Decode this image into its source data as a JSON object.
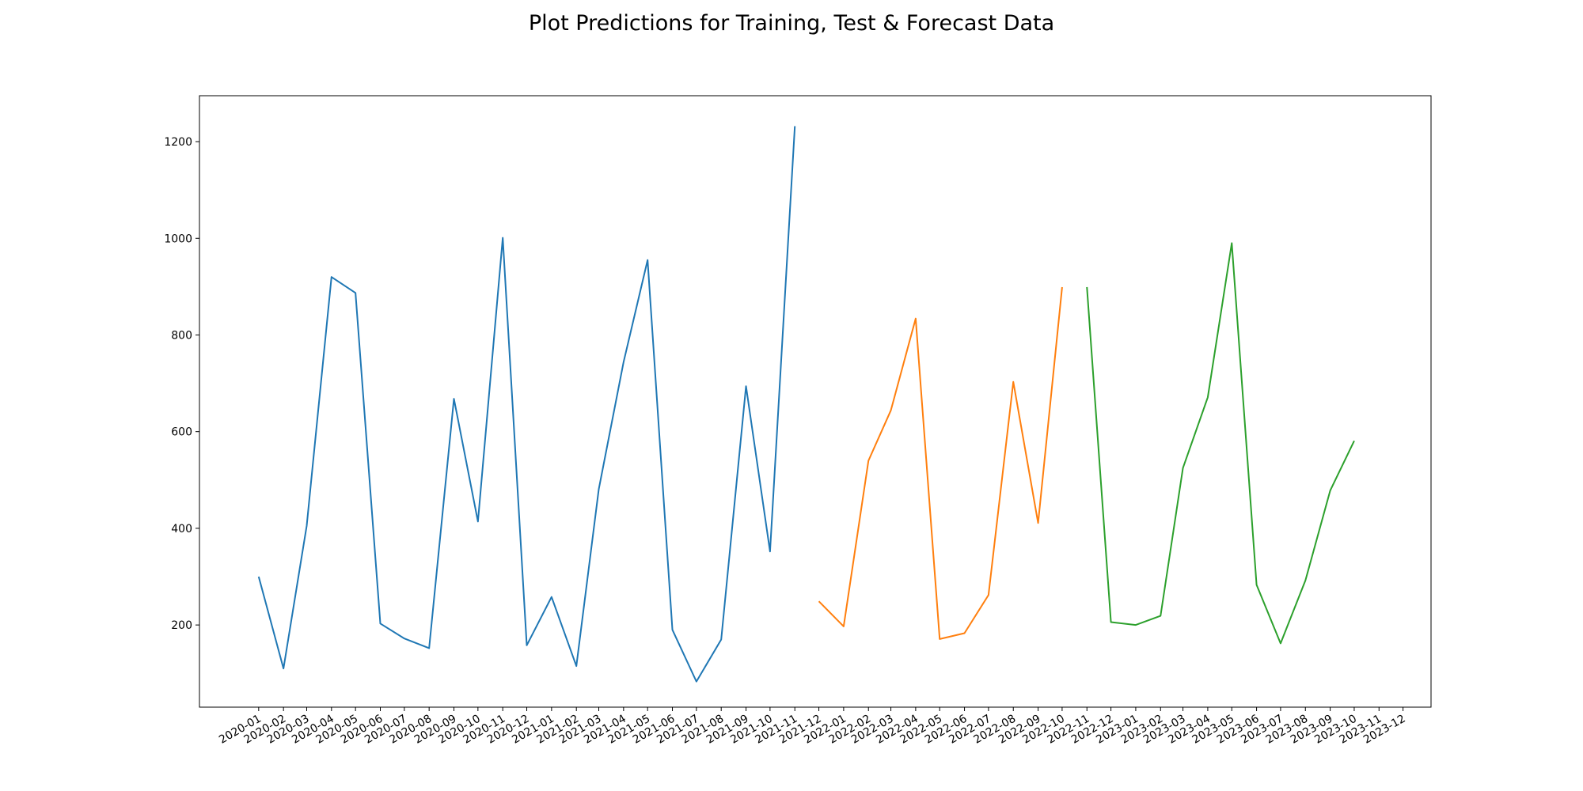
{
  "chart_data": {
    "type": "line",
    "title": "Plot Predictions for Training, Test & Forecast Data",
    "xlabel": "",
    "ylabel": "",
    "x_ticks": [
      "2020-01",
      "2020-02",
      "2020-03",
      "2020-04",
      "2020-05",
      "2020-06",
      "2020-07",
      "2020-08",
      "2020-09",
      "2020-10",
      "2020-11",
      "2020-12",
      "2021-01",
      "2021-02",
      "2021-03",
      "2021-04",
      "2021-05",
      "2021-06",
      "2021-07",
      "2021-08",
      "2021-09",
      "2021-10",
      "2021-11",
      "2021-12",
      "2022-01",
      "2022-02",
      "2022-03",
      "2022-04",
      "2022-05",
      "2022-06",
      "2022-07",
      "2022-08",
      "2022-09",
      "2022-10",
      "2022-11",
      "2022-12",
      "2023-01",
      "2023-02",
      "2023-03",
      "2023-04",
      "2023-05",
      "2023-06",
      "2023-07",
      "2023-08",
      "2023-09",
      "2023-10",
      "2023-11",
      "2023-12"
    ],
    "y_ticks": [
      200,
      400,
      600,
      800,
      1000,
      1200
    ],
    "ylim": [
      30,
      1295
    ],
    "xlim": [
      "2019-10-19",
      "2024-01-05"
    ],
    "grid": false,
    "series": [
      {
        "color": "#1f77b4",
        "points": [
          [
            "2020-01",
            300
          ],
          [
            "2020-02",
            110
          ],
          [
            "2020-03",
            405
          ],
          [
            "2020-04",
            920
          ],
          [
            "2020-05",
            887
          ],
          [
            "2020-06",
            203
          ],
          [
            "2020-07",
            172
          ],
          [
            "2020-08",
            152
          ],
          [
            "2020-09",
            668
          ],
          [
            "2020-10",
            414
          ],
          [
            "2020-11",
            1001
          ],
          [
            "2020-12",
            158
          ],
          [
            "2021-01",
            258
          ],
          [
            "2021-02",
            115
          ],
          [
            "2021-03",
            481
          ],
          [
            "2021-04",
            744
          ],
          [
            "2021-05",
            955
          ],
          [
            "2021-06",
            190
          ],
          [
            "2021-07",
            83
          ],
          [
            "2021-08",
            170
          ],
          [
            "2021-09",
            694
          ],
          [
            "2021-10",
            352
          ],
          [
            "2021-11",
            1232
          ]
        ]
      },
      {
        "color": "#ff7f0e",
        "points": [
          [
            "2021-12",
            249
          ],
          [
            "2022-01",
            197
          ],
          [
            "2022-02",
            540
          ],
          [
            "2022-03",
            644
          ],
          [
            "2022-04",
            834
          ],
          [
            "2022-05",
            171
          ],
          [
            "2022-06",
            183
          ],
          [
            "2022-07",
            262
          ],
          [
            "2022-08",
            703
          ],
          [
            "2022-09",
            411
          ],
          [
            "2022-10",
            899
          ]
        ]
      },
      {
        "color": "#2ca02c",
        "points": [
          [
            "2022-11",
            899
          ],
          [
            "2022-12",
            206
          ],
          [
            "2023-01",
            200
          ],
          [
            "2023-02",
            219
          ],
          [
            "2023-03",
            525
          ],
          [
            "2023-04",
            671
          ],
          [
            "2023-05",
            990
          ],
          [
            "2023-06",
            283
          ],
          [
            "2023-07",
            162
          ],
          [
            "2023-08",
            292
          ],
          [
            "2023-09",
            478
          ],
          [
            "2023-10",
            581
          ]
        ]
      }
    ]
  }
}
